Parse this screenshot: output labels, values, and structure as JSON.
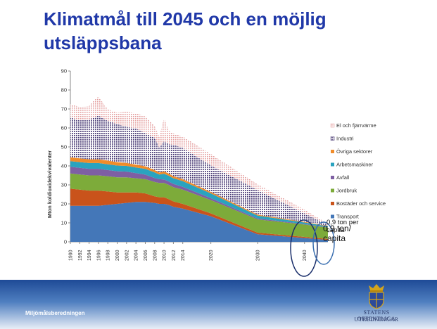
{
  "slide": {
    "title": "Klimatmål till 2045 och en möjlig utsläppsbana",
    "footer_left": "Miljömålsberedningen",
    "logo_line1": "STATENS OFFENTLIGA",
    "logo_line2": "UTREDNINGAR"
  },
  "annotations": {
    "large": "0,9 ton/ capita",
    "small": "0,9 ton per capita"
  },
  "colors": {
    "title": "#2038a8",
    "footer": "#1e4a96"
  },
  "chart_data": {
    "type": "area",
    "stacked": true,
    "title": "",
    "xlabel": "",
    "ylabel": "Mton koldioxidekvivalenter",
    "ylim": [
      0,
      90
    ],
    "yticks": [
      0,
      10,
      20,
      30,
      40,
      50,
      60,
      70,
      80,
      90
    ],
    "xlim": [
      1990,
      2045
    ],
    "xtick_labels": [
      "1990",
      "1992",
      "1994",
      "1996",
      "1998",
      "2000",
      "2002",
      "2004",
      "2006",
      "2008",
      "2010",
      "2012",
      "2014",
      "2020",
      "2030",
      "2040"
    ],
    "legend_position": "right",
    "legend_order": [
      "El och fjärrvärme",
      "Industri",
      "Övriga sektorer",
      "Arbetsmaskiner",
      "Avfall",
      "Jordbruk",
      "Bostäder och service",
      "Transport"
    ],
    "x": [
      1990,
      1992,
      1994,
      1995,
      1996,
      1998,
      2000,
      2002,
      2004,
      2006,
      2008,
      2009,
      2010,
      2011,
      2012,
      2014,
      2020,
      2030,
      2040,
      2045
    ],
    "series": [
      {
        "name": "Transport",
        "color": "#4477b8",
        "values": [
          19,
          19,
          19,
          19,
          19,
          19.5,
          20,
          20.5,
          21,
          21,
          20.5,
          20,
          20,
          19.5,
          18.5,
          17.5,
          13.5,
          4,
          2,
          1
        ]
      },
      {
        "name": "Bostäder och service",
        "color": "#c9531b",
        "values": [
          9,
          8.5,
          8,
          8,
          8,
          7,
          6,
          5.5,
          5,
          4.5,
          3.5,
          3.5,
          3.5,
          3,
          2.8,
          2.5,
          1.5,
          0.8,
          0.6,
          0.5
        ]
      },
      {
        "name": "Jordbruk",
        "color": "#7dab3a",
        "values": [
          8,
          8,
          8,
          8,
          8,
          8,
          8,
          8,
          7.5,
          7.5,
          7.5,
          7.5,
          7.5,
          7.5,
          7.5,
          7.5,
          7,
          7,
          6.5,
          6
        ]
      },
      {
        "name": "Avfall",
        "color": "#7e5fa3",
        "values": [
          3.5,
          3.5,
          3.5,
          3.5,
          3.5,
          3.3,
          3.2,
          3,
          2.7,
          2.4,
          2.1,
          2,
          1.9,
          1.8,
          1.7,
          1.5,
          1,
          0.5,
          0.3,
          0.2
        ]
      },
      {
        "name": "Arbetsmaskiner",
        "color": "#2aa3bf",
        "values": [
          3,
          3,
          3,
          3,
          3,
          3,
          3,
          3,
          3,
          3,
          3,
          2.5,
          3,
          3,
          3,
          3,
          2.5,
          1.5,
          0.8,
          0.5
        ]
      },
      {
        "name": "Övriga sektorer",
        "color": "#f08c2a",
        "values": [
          2,
          2,
          2,
          2,
          2,
          2,
          1.8,
          1.6,
          1.5,
          1.4,
          1.2,
          1,
          1.2,
          1.2,
          1.1,
          1,
          0.8,
          0.5,
          0.3,
          0.2
        ]
      },
      {
        "name": "Industri",
        "color": "#4a3b75",
        "pattern": "dots",
        "values": [
          21,
          20,
          21,
          22,
          23,
          21,
          20,
          19,
          19,
          17.5,
          17,
          13,
          16,
          15.5,
          16.5,
          16.5,
          14,
          13,
          4.5,
          0.6
        ]
      },
      {
        "name": "El och fjärrvärme",
        "color": "#e8a4a4",
        "pattern": "dots",
        "values": [
          7,
          7,
          7,
          9,
          10,
          6,
          6,
          8,
          8,
          9,
          6,
          6,
          12,
          7,
          6,
          6,
          6,
          3,
          2,
          0.5
        ]
      }
    ]
  }
}
